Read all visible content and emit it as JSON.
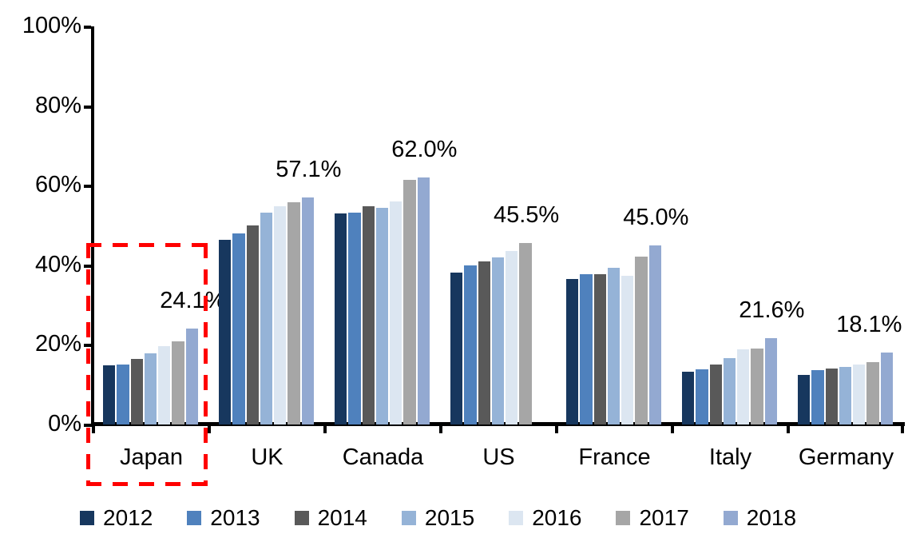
{
  "chart_data": {
    "type": "bar",
    "title": "",
    "xlabel": "",
    "ylabel": "",
    "categories": [
      "Japan",
      "UK",
      "Canada",
      "US",
      "France",
      "Italy",
      "Germany"
    ],
    "series": [
      {
        "name": "2012",
        "color": "#17375E",
        "values": [
          14.8,
          46.4,
          53.0,
          38.2,
          36.5,
          13.2,
          12.4
        ]
      },
      {
        "name": "2013",
        "color": "#4F81BD",
        "values": [
          15.0,
          48.0,
          53.3,
          39.9,
          37.8,
          13.9,
          13.6
        ]
      },
      {
        "name": "2014",
        "color": "#595959",
        "values": [
          16.5,
          50.0,
          54.8,
          41.0,
          37.7,
          15.1,
          14.0
        ]
      },
      {
        "name": "2015",
        "color": "#95B3D7",
        "values": [
          17.8,
          53.3,
          54.5,
          42.0,
          39.3,
          16.7,
          14.4
        ]
      },
      {
        "name": "2016",
        "color": "#DCE6F1",
        "values": [
          19.7,
          54.9,
          56.0,
          43.5,
          37.4,
          18.9,
          15.1
        ]
      },
      {
        "name": "2017",
        "color": "#A6A6A6",
        "values": [
          20.9,
          55.8,
          61.5,
          45.5,
          42.2,
          19.1,
          15.7
        ]
      },
      {
        "name": "2018",
        "color": "#93A9D1",
        "values": [
          24.1,
          57.1,
          62.0,
          null,
          45.0,
          21.6,
          18.1
        ]
      }
    ],
    "data_labels": [
      "24.1%",
      "57.1%",
      "62.0%",
      "45.5%",
      "45.0%",
      "21.6%",
      "18.1%"
    ],
    "y_ticks": [
      "100%",
      "80%",
      "60%",
      "40%",
      "20%",
      "0%"
    ],
    "ylim": [
      0,
      100
    ],
    "grid": false,
    "legend_position": "bottom",
    "legend_items": [
      "2012",
      "2013",
      "2014",
      "2015",
      "2016",
      "2017",
      "2018"
    ],
    "highlight": {
      "category": "Japan",
      "style": "red-dashed-box",
      "color": "#FF0000"
    }
  }
}
